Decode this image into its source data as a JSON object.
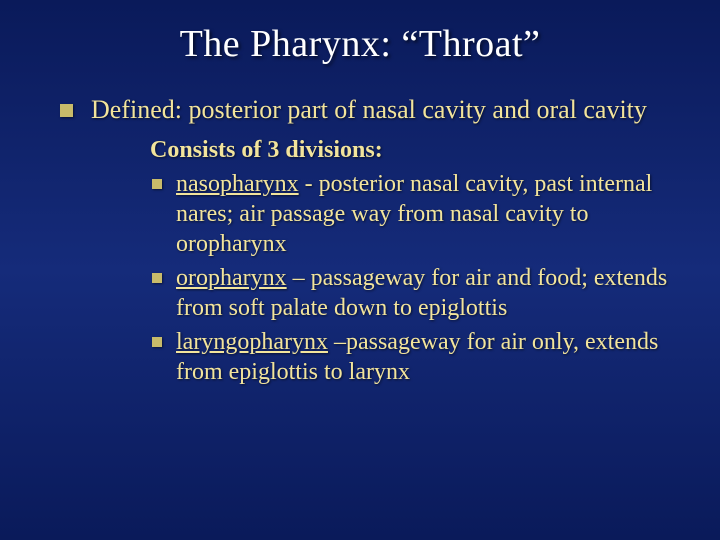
{
  "slide": {
    "background_gradient": [
      "#0a1a5a",
      "#152b7a",
      "#0a1a5a"
    ],
    "title_color": "#ffffff",
    "body_color": "#f2e49c",
    "bullet_color": "#c8bb6a",
    "title": "The Pharynx: “Throat”",
    "title_fontsize": 38,
    "body_fontsize_l1": 26,
    "body_fontsize_l2": 24,
    "point": "Defined: posterior part of nasal cavity and oral cavity",
    "sub_heading": "Consists of 3 divisions:",
    "divisions": [
      {
        "term": "nasopharynx",
        "rest": " - posterior nasal cavity, past internal nares; air passage way from nasal cavity to oropharynx"
      },
      {
        "term": "oropharynx",
        "rest": " – passageway for air and food; extends from soft palate down to epiglottis"
      },
      {
        "term": "laryngopharynx",
        "rest": " –passageway for air only, extends from epiglottis to larynx"
      }
    ]
  }
}
